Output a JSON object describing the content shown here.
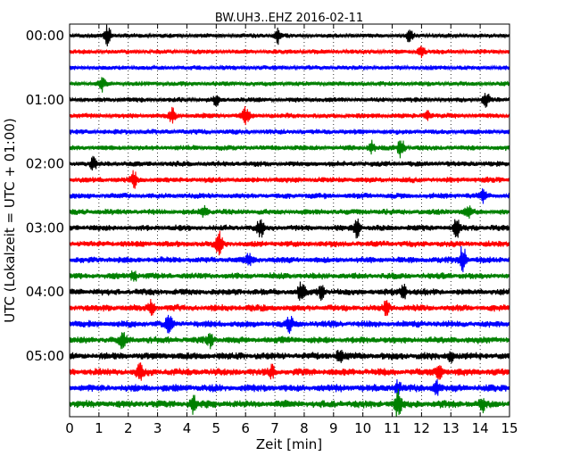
{
  "chart_data": {
    "type": "line",
    "title": "BW.UH3..EHZ 2016-02-11",
    "xlabel": "Zeit  [min]",
    "ylabel": "UTC (Lokalzeit = UTC + 01:00)",
    "xlim": [
      0,
      15
    ],
    "x_ticks": [
      "0",
      "1",
      "2",
      "3",
      "4",
      "5",
      "6",
      "7",
      "8",
      "9",
      "10",
      "11",
      "12",
      "13",
      "14",
      "15"
    ],
    "y_tick_labels": [
      "00:00",
      "01:00",
      "02:00",
      "03:00",
      "04:00",
      "05:00"
    ],
    "trace_interval_minutes": 15,
    "trace_count": 24,
    "colors": [
      "#000000",
      "#ff0000",
      "#0000ff",
      "#008000"
    ],
    "grid": "vertical dotted",
    "traces": [
      {
        "label": "00:00",
        "events": [
          [
            1.3,
            2.2
          ],
          [
            7.1,
            1.6
          ],
          [
            11.6,
            1.3
          ]
        ]
      },
      {
        "label": "00:15",
        "events": [
          [
            12.0,
            1.3
          ]
        ]
      },
      {
        "label": "00:30",
        "events": []
      },
      {
        "label": "00:45",
        "events": [
          [
            1.1,
            1.6
          ]
        ]
      },
      {
        "label": "01:00",
        "events": [
          [
            5.0,
            1.1
          ],
          [
            14.2,
            1.5
          ]
        ]
      },
      {
        "label": "01:15",
        "events": [
          [
            3.5,
            1.5
          ],
          [
            6.0,
            1.8
          ],
          [
            12.2,
            1.0
          ]
        ]
      },
      {
        "label": "01:30",
        "events": []
      },
      {
        "label": "01:45",
        "events": [
          [
            10.3,
            1.2
          ],
          [
            11.3,
            2.0
          ]
        ]
      },
      {
        "label": "02:00",
        "events": [
          [
            0.8,
            1.2
          ]
        ]
      },
      {
        "label": "02:15",
        "events": [
          [
            2.2,
            1.7
          ]
        ]
      },
      {
        "label": "02:30",
        "events": [
          [
            14.1,
            1.2
          ]
        ]
      },
      {
        "label": "02:45",
        "events": [
          [
            4.6,
            1.3
          ],
          [
            13.6,
            1.0
          ]
        ]
      },
      {
        "label": "03:00",
        "events": [
          [
            6.5,
            2.0
          ],
          [
            9.8,
            2.0
          ],
          [
            13.2,
            1.7
          ]
        ]
      },
      {
        "label": "03:15",
        "events": [
          [
            5.1,
            2.2
          ]
        ]
      },
      {
        "label": "03:30",
        "events": [
          [
            6.1,
            1.3
          ],
          [
            13.4,
            3.5
          ]
        ]
      },
      {
        "label": "03:45",
        "events": [
          [
            2.2,
            1.0
          ]
        ]
      },
      {
        "label": "04:00",
        "events": [
          [
            7.9,
            2.0
          ],
          [
            8.6,
            1.5
          ],
          [
            11.4,
            2.0
          ]
        ]
      },
      {
        "label": "04:15",
        "events": [
          [
            2.8,
            1.5
          ],
          [
            10.8,
            1.2
          ]
        ]
      },
      {
        "label": "04:30",
        "events": [
          [
            3.4,
            2.0
          ],
          [
            7.5,
            1.3
          ]
        ]
      },
      {
        "label": "04:45",
        "events": [
          [
            1.8,
            1.5
          ],
          [
            4.8,
            1.2
          ]
        ]
      },
      {
        "label": "05:00",
        "events": [
          [
            9.2,
            1.3
          ],
          [
            13.0,
            1.3
          ]
        ]
      },
      {
        "label": "05:15",
        "events": [
          [
            2.4,
            1.5
          ],
          [
            6.9,
            1.2
          ],
          [
            12.6,
            1.5
          ]
        ]
      },
      {
        "label": "05:30",
        "events": [
          [
            11.2,
            1.5
          ],
          [
            12.5,
            1.8
          ]
        ]
      },
      {
        "label": "05:45",
        "events": [
          [
            4.2,
            1.8
          ],
          [
            11.2,
            3.0
          ],
          [
            14.1,
            1.3
          ]
        ]
      }
    ]
  }
}
